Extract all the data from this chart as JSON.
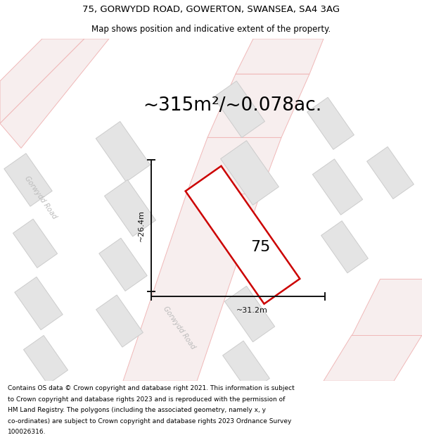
{
  "title_line1": "75, GORWYDD ROAD, GOWERTON, SWANSEA, SA4 3AG",
  "title_line2": "Map shows position and indicative extent of the property.",
  "area_text": "~315m²/~0.078ac.",
  "property_number": "75",
  "dim_vertical": "~26.4m",
  "dim_horizontal": "~31.2m",
  "footer_lines": [
    "Contains OS data © Crown copyright and database right 2021. This information is subject",
    "to Crown copyright and database rights 2023 and is reproduced with the permission of",
    "HM Land Registry. The polygons (including the associated geometry, namely x, y",
    "co-ordinates) are subject to Crown copyright and database rights 2023 Ordnance Survey",
    "100026316."
  ],
  "bg_color": "#f2f2f2",
  "road_fill": "#f7eeee",
  "road_edge": "#f0b8b8",
  "building_fill": "#e4e4e4",
  "building_edge": "#cccccc",
  "property_fill": "#ffffff",
  "property_edge": "#cc0000",
  "dim_color": "#111111",
  "road_label_color": "#bbbbbb",
  "title_fontsize": 9.5,
  "subtitle_fontsize": 8.5,
  "area_fontsize": 19,
  "number_fontsize": 16,
  "dim_fontsize": 8,
  "road_label_fontsize": 7,
  "footer_fontsize": 6.5
}
